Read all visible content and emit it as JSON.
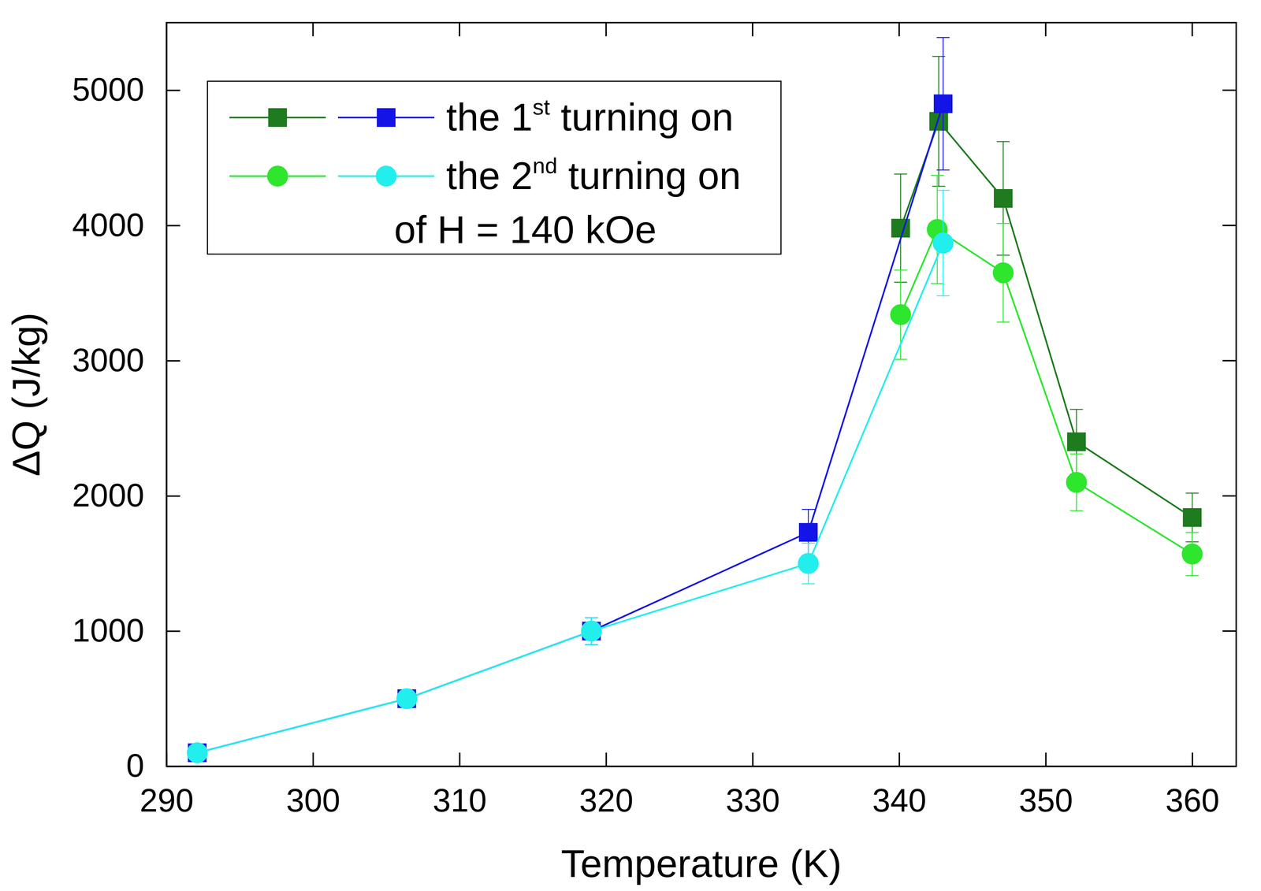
{
  "chart_data": {
    "type": "line",
    "x_label": "Temperature (K)",
    "y_label": "ΔQ (J/kg)",
    "legend_title": "of H = 140 kOe",
    "legend": "upper left",
    "xlim": [
      290,
      363
    ],
    "ylim": [
      0,
      5500
    ],
    "xticks": [
      290,
      300,
      310,
      320,
      330,
      340,
      350,
      360
    ],
    "yticks": [
      0,
      1000,
      2000,
      3000,
      4000,
      5000
    ],
    "grid": false,
    "series": [
      {
        "name": "the 1st turning on",
        "color": "#1e7b1e",
        "marker": "square",
        "line_style": "solid",
        "x": [
          340.1,
          342.7,
          347.1,
          352.1,
          360.0
        ],
        "values": [
          3980,
          4770,
          4200,
          2400,
          1840
        ],
        "errors": [
          400,
          480,
          420,
          240,
          180
        ]
      },
      {
        "name": "the 1st turning on",
        "color": "#1414e6",
        "marker": "square",
        "line_style": "solid",
        "x": [
          292.1,
          306.4,
          319.0,
          333.8,
          343.0
        ],
        "values": [
          100,
          500,
          1000,
          1730,
          4900
        ],
        "errors": [
          10,
          50,
          100,
          170,
          490
        ]
      },
      {
        "name": "the 2nd turning on",
        "color": "#2ee62e",
        "marker": "circle",
        "line_style": "solid",
        "x": [
          340.1,
          342.6,
          347.1,
          352.1,
          360.0
        ],
        "values": [
          3340,
          3970,
          3650,
          2100,
          1570
        ],
        "errors": [
          330,
          400,
          365,
          210,
          160
        ]
      },
      {
        "name": "the 2nd turning on",
        "color": "#22eeee",
        "marker": "circle",
        "line_style": "solid",
        "x": [
          292.1,
          306.4,
          319.0,
          333.8,
          343.0
        ],
        "values": [
          100,
          500,
          1000,
          1500,
          3870
        ],
        "errors": [
          10,
          50,
          100,
          150,
          390
        ]
      }
    ]
  }
}
